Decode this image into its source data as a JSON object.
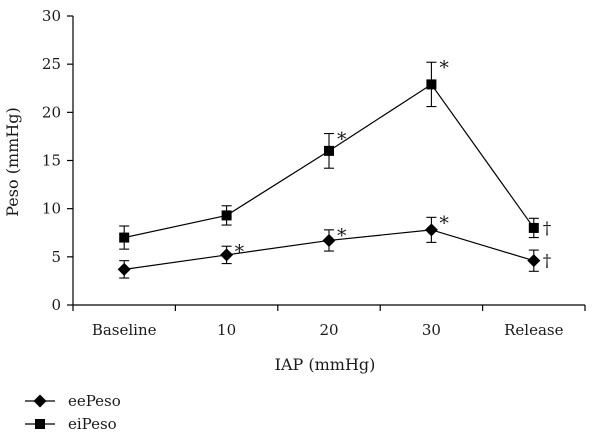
{
  "chart_data": {
    "type": "line",
    "title": "",
    "xlabel": "IAP (mmHg)",
    "ylabel": "Peso (mmHg)",
    "ylim": [
      0,
      30
    ],
    "yticks": [
      "0",
      "5",
      "10",
      "15",
      "20",
      "25",
      "30"
    ],
    "categories": [
      "Baseline",
      "10",
      "20",
      "30",
      "Release"
    ],
    "grid": false,
    "legend_position": "bottom-left",
    "series": [
      {
        "name": "eePeso",
        "marker": "diamond",
        "color": "#000000",
        "values": [
          3.7,
          5.2,
          6.7,
          7.8,
          4.6
        ],
        "error": [
          0.9,
          0.9,
          1.1,
          1.3,
          1.1
        ],
        "annotations": [
          "",
          "*",
          "*",
          "*",
          "†"
        ]
      },
      {
        "name": "eiPeso",
        "marker": "square",
        "color": "#000000",
        "values": [
          7.0,
          9.3,
          16.0,
          22.9,
          8.0
        ],
        "error": [
          1.2,
          1.0,
          1.8,
          2.3,
          1.0
        ],
        "annotations": [
          "",
          "",
          "*",
          "*",
          "†"
        ]
      }
    ]
  }
}
